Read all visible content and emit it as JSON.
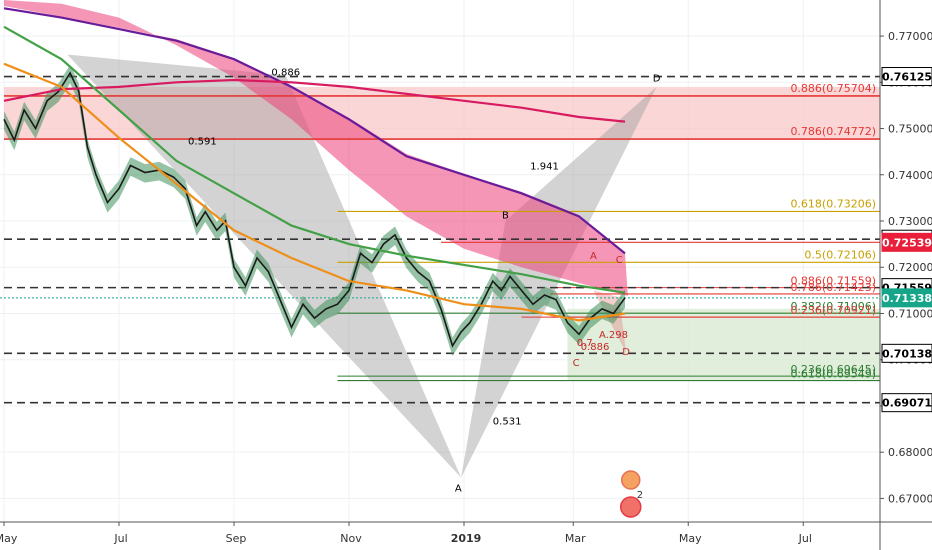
{
  "chart_data": {
    "type": "line",
    "instrument_note": "",
    "ylim": [
      0.6649,
      0.7778
    ],
    "xlim_months": [
      0,
      10.6
    ],
    "y_ticks": [
      "0.77000",
      "0.76000",
      "0.75000",
      "0.74000",
      "0.73000",
      "0.72000",
      "0.71000",
      "0.70000",
      "0.69000",
      "0.68000",
      "0.67000"
    ],
    "y_tick_values": [
      0.77,
      0.76,
      0.75,
      0.74,
      0.73,
      0.72,
      0.71,
      0.7,
      0.69,
      0.68,
      0.67
    ],
    "x_ticks": [
      {
        "label": "May",
        "m": 0.0,
        "bold": false
      },
      {
        "label": "Jul",
        "m": 2.0,
        "bold": false
      },
      {
        "label": "Sep",
        "m": 4.0,
        "bold": false
      },
      {
        "label": "Nov",
        "m": 6.0,
        "bold": false
      },
      {
        "label": "2019",
        "m": 8.0,
        "bold": true
      },
      {
        "label": "Mar",
        "m": 9.9,
        "bold": false
      },
      {
        "label": "May",
        "m": 11.9,
        "bold": false
      },
      {
        "label": "Jul",
        "m": 13.9,
        "bold": false
      }
    ],
    "price_tags": [
      {
        "label": "0.76125",
        "y": 0.76125,
        "bg": "#ffffff",
        "fg": "#000000",
        "border": "#000000"
      },
      {
        "label": "0.72606",
        "y": 0.72606,
        "bg": "#ffffff",
        "fg": "#000000",
        "border": "#000000"
      },
      {
        "label": "0.72539",
        "y": 0.72539,
        "bg": "#e91e3a",
        "fg": "#ffffff",
        "border": "#e91e3a"
      },
      {
        "label": "0.71559",
        "y": 0.71559,
        "bg": "#ffffff",
        "fg": "#000000",
        "border": "#000000"
      },
      {
        "label": "0.71338",
        "y": 0.71338,
        "bg": "#17a589",
        "fg": "#ffffff",
        "border": "#17a589"
      },
      {
        "label": "0.70138",
        "y": 0.70138,
        "bg": "#ffffff",
        "fg": "#000000",
        "border": "#000000"
      },
      {
        "label": "0.69071",
        "y": 0.69071,
        "bg": "#ffffff",
        "fg": "#000000",
        "border": "#000000"
      }
    ],
    "dashed_levels": [
      0.76125,
      0.72606,
      0.71559,
      0.70138,
      0.69071
    ],
    "fib_upper": [
      {
        "label": "0.886(0.75704)",
        "y": 0.75704,
        "color": "#e53935"
      },
      {
        "label": "0.786(0.74772)",
        "y": 0.74772,
        "color": "#e53935"
      },
      {
        "label": "0.618(0.73206)",
        "y": 0.73206,
        "color": "#c8a000"
      },
      {
        "label": "0.5(0.72106)",
        "y": 0.72106,
        "color": "#c8a000"
      }
    ],
    "fib_lower": [
      {
        "label": "0.886(0.71559)",
        "y": 0.71559,
        "color": "#e53935"
      },
      {
        "label": "0.786(0.71423)",
        "y": 0.71423,
        "color": "#e53935"
      },
      {
        "label": "0.382(0.71006)",
        "y": 0.71006,
        "color": "#2e7d32"
      },
      {
        "label": "0.236(0.70921)",
        "y": 0.70921,
        "color": "#e53935"
      },
      {
        "label": "0.236(0.69645)",
        "y": 0.69645,
        "color": "#2e7d32"
      },
      {
        "label": "0.618(0.69549)",
        "y": 0.69549,
        "color": "#2e7d32"
      }
    ],
    "pattern_labels": [
      {
        "text": "0.886",
        "m": 4.9,
        "y": 0.7615,
        "color": "#000000"
      },
      {
        "text": "0.591",
        "m": 3.45,
        "y": 0.7466,
        "color": "#000000"
      },
      {
        "text": "1.941",
        "m": 9.4,
        "y": 0.7411,
        "color": "#000000"
      },
      {
        "text": "0.531",
        "m": 8.75,
        "y": 0.686,
        "color": "#000000"
      },
      {
        "text": "D",
        "m": 11.35,
        "y": 0.7602,
        "color": "#000000"
      },
      {
        "text": "B",
        "m": 8.72,
        "y": 0.7305,
        "color": "#000000"
      },
      {
        "text": "A",
        "m": 7.9,
        "y": 0.6715,
        "color": "#000000"
      },
      {
        "text": "A",
        "m": 10.25,
        "y": 0.7218,
        "color": "#c62828"
      },
      {
        "text": "C",
        "m": 10.7,
        "y": 0.7209,
        "color": "#c62828"
      },
      {
        "text": "0.7",
        "m": 10.1,
        "y": 0.703,
        "color": "#c62828"
      },
      {
        "text": "0.886",
        "m": 10.28,
        "y": 0.7021,
        "color": "#c62828"
      },
      {
        "text": "A.298",
        "m": 10.6,
        "y": 0.7047,
        "color": "#c62828"
      },
      {
        "text": "D",
        "m": 10.82,
        "y": 0.701,
        "color": "#c62828"
      },
      {
        "text": "C",
        "m": 9.95,
        "y": 0.6986,
        "color": "#c62828"
      }
    ],
    "series": [
      {
        "kind": "price",
        "color": "#1a1a1a",
        "points": [
          [
            0,
            0.752
          ],
          [
            0.18,
            0.7475
          ],
          [
            0.35,
            0.754
          ],
          [
            0.55,
            0.75
          ],
          [
            0.75,
            0.756
          ],
          [
            0.95,
            0.758
          ],
          [
            1.15,
            0.762
          ],
          [
            1.3,
            0.758
          ],
          [
            1.45,
            0.746
          ],
          [
            1.6,
            0.74
          ],
          [
            1.8,
            0.734
          ],
          [
            2.0,
            0.737
          ],
          [
            2.2,
            0.742
          ],
          [
            2.45,
            0.7405
          ],
          [
            2.7,
            0.741
          ],
          [
            2.95,
            0.7395
          ],
          [
            3.15,
            0.737
          ],
          [
            3.35,
            0.729
          ],
          [
            3.5,
            0.732
          ],
          [
            3.7,
            0.728
          ],
          [
            3.85,
            0.73
          ],
          [
            4.0,
            0.72
          ],
          [
            4.2,
            0.716
          ],
          [
            4.4,
            0.722
          ],
          [
            4.6,
            0.719
          ],
          [
            4.8,
            0.713
          ],
          [
            5.0,
            0.707
          ],
          [
            5.2,
            0.712
          ],
          [
            5.4,
            0.709
          ],
          [
            5.6,
            0.711
          ],
          [
            5.8,
            0.712
          ],
          [
            6.0,
            0.715
          ],
          [
            6.2,
            0.723
          ],
          [
            6.4,
            0.721
          ],
          [
            6.6,
            0.725
          ],
          [
            6.8,
            0.727
          ],
          [
            7.0,
            0.722
          ],
          [
            7.2,
            0.719
          ],
          [
            7.4,
            0.717
          ],
          [
            7.6,
            0.711
          ],
          [
            7.8,
            0.703
          ],
          [
            7.95,
            0.706
          ],
          [
            8.1,
            0.708
          ],
          [
            8.3,
            0.712
          ],
          [
            8.5,
            0.717
          ],
          [
            8.65,
            0.715
          ],
          [
            8.8,
            0.718
          ],
          [
            9.0,
            0.715
          ],
          [
            9.2,
            0.712
          ],
          [
            9.4,
            0.714
          ],
          [
            9.6,
            0.713
          ],
          [
            9.8,
            0.708
          ],
          [
            10.0,
            0.7055
          ],
          [
            10.2,
            0.709
          ],
          [
            10.4,
            0.711
          ],
          [
            10.6,
            0.71
          ],
          [
            10.8,
            0.7134
          ]
        ]
      },
      {
        "kind": "ma",
        "color": "#6a1b9a",
        "points": [
          [
            0,
            0.776
          ],
          [
            1,
            0.774
          ],
          [
            2,
            0.7715
          ],
          [
            3,
            0.769
          ],
          [
            4,
            0.765
          ],
          [
            5,
            0.759
          ],
          [
            6,
            0.752
          ],
          [
            7,
            0.744
          ],
          [
            8,
            0.74
          ],
          [
            9,
            0.736
          ],
          [
            10,
            0.731
          ],
          [
            10.8,
            0.723
          ]
        ]
      },
      {
        "kind": "ma",
        "color": "#d81b60",
        "points": [
          [
            0,
            0.756
          ],
          [
            1,
            0.7585
          ],
          [
            2,
            0.759
          ],
          [
            3,
            0.76
          ],
          [
            4,
            0.7605
          ],
          [
            5,
            0.76
          ],
          [
            6,
            0.759
          ],
          [
            7,
            0.7575
          ],
          [
            8,
            0.756
          ],
          [
            9,
            0.7545
          ],
          [
            10,
            0.7525
          ],
          [
            10.8,
            0.7515
          ]
        ]
      },
      {
        "kind": "ma",
        "color": "#43a047",
        "points": [
          [
            0,
            0.772
          ],
          [
            1,
            0.765
          ],
          [
            2,
            0.754
          ],
          [
            3,
            0.743
          ],
          [
            4,
            0.736
          ],
          [
            5,
            0.729
          ],
          [
            6,
            0.725
          ],
          [
            7,
            0.7225
          ],
          [
            8,
            0.7205
          ],
          [
            9,
            0.7185
          ],
          [
            10,
            0.716
          ],
          [
            10.8,
            0.7145
          ]
        ]
      },
      {
        "kind": "ma",
        "color": "#ef8f1a",
        "points": [
          [
            0,
            0.764
          ],
          [
            1,
            0.759
          ],
          [
            2,
            0.748
          ],
          [
            3,
            0.738
          ],
          [
            4,
            0.728
          ],
          [
            5,
            0.722
          ],
          [
            6,
            0.717
          ],
          [
            7,
            0.715
          ],
          [
            8,
            0.712
          ],
          [
            9,
            0.711
          ],
          [
            10,
            0.7085
          ],
          [
            10.8,
            0.71
          ]
        ]
      }
    ]
  }
}
